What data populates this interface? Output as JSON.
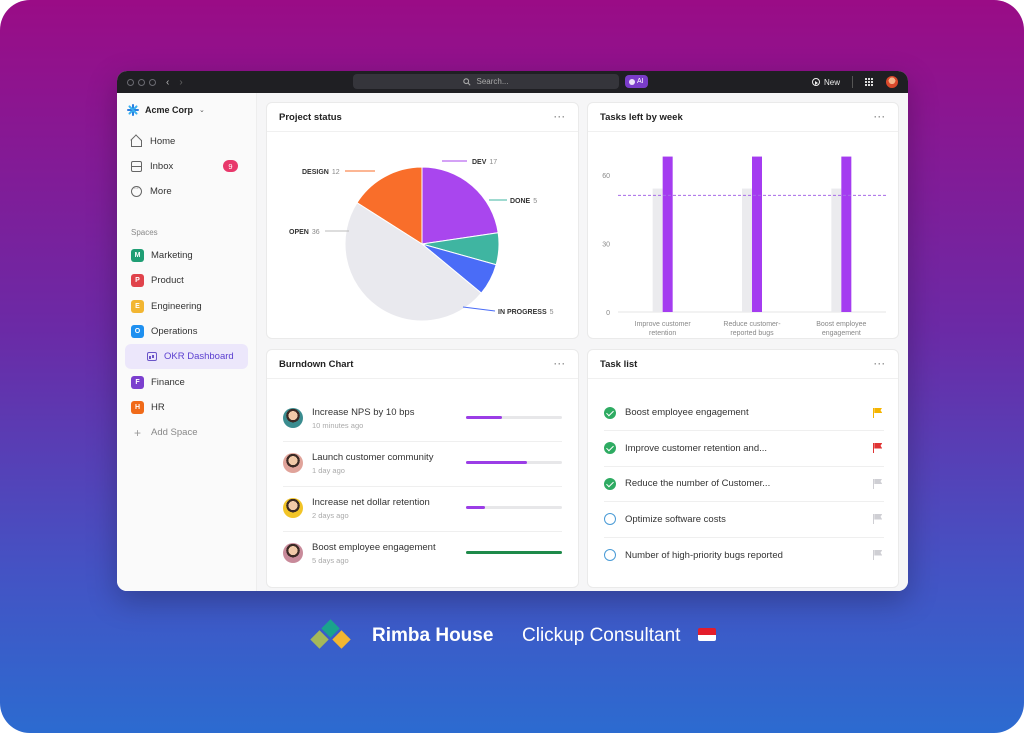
{
  "topbar": {
    "search_placeholder": "Search...",
    "ai_label": "AI",
    "new_label": "New"
  },
  "sidebar": {
    "workspace": "Acme Corp",
    "nav": [
      {
        "label": "Home",
        "icon": "home-icon"
      },
      {
        "label": "Inbox",
        "icon": "inbox-icon",
        "badge": "9"
      },
      {
        "label": "More",
        "icon": "more-icon"
      }
    ],
    "spaces_label": "Spaces",
    "spaces": [
      {
        "letter": "M",
        "label": "Marketing",
        "color": "#1f9e74"
      },
      {
        "letter": "P",
        "label": "Product",
        "color": "#e0434b"
      },
      {
        "letter": "E",
        "label": "Engineering",
        "color": "#f2b632"
      },
      {
        "letter": "O",
        "label": "Operations",
        "color": "#1e90f0"
      }
    ],
    "active_dashboard": "OKR Dashboard",
    "spaces_more": [
      {
        "letter": "F",
        "label": "Finance",
        "color": "#7b3fce"
      },
      {
        "letter": "H",
        "label": "HR",
        "color": "#f06a19"
      }
    ],
    "add_space": "Add Space"
  },
  "project_status": {
    "title": "Project status",
    "menu": "···",
    "chart_data": {
      "type": "pie",
      "slices": [
        {
          "label": "DESIGN",
          "value": 12,
          "color": "#f96e2a"
        },
        {
          "label": "DEV",
          "value": 17,
          "color": "#a946ee"
        },
        {
          "label": "DONE",
          "value": 5,
          "color": "#3fb5a1"
        },
        {
          "label": "IN PROGRESS",
          "value": 5,
          "color": "#4a6cf7"
        },
        {
          "label": "OPEN",
          "value": 36,
          "color": "#e9e9ee"
        }
      ]
    }
  },
  "tasks_by_week": {
    "title": "Tasks left by week",
    "menu": "···",
    "chart_data": {
      "type": "bar",
      "categories": [
        "Improve customer retention",
        "Reduce customer-reported bugs",
        "Boost employee engagement"
      ],
      "series": [
        {
          "values": [
            54,
            54,
            54
          ],
          "color": "#ebebee"
        },
        {
          "values": [
            68,
            68,
            68
          ],
          "color": "#a43cf0"
        }
      ],
      "reference_line": 51,
      "yticks": [
        0,
        30,
        60
      ],
      "ylim": [
        0,
        70
      ]
    }
  },
  "burndown": {
    "title": "Burndown Chart",
    "menu": "···",
    "rows": [
      {
        "title": "Increase NPS by 10 bps",
        "time": "10 minutes ago",
        "progress": 0.38,
        "color": "#9b3de6"
      },
      {
        "title": "Launch customer community",
        "time": "1 day ago",
        "progress": 0.64,
        "color": "#9b3de6"
      },
      {
        "title": "Increase net dollar retention",
        "time": "2 days ago",
        "progress": 0.2,
        "color": "#9b3de6"
      },
      {
        "title": "Boost employee engagement",
        "time": "5 days ago",
        "progress": 1.0,
        "color": "#1e8a4a"
      }
    ]
  },
  "task_list": {
    "title": "Task list",
    "menu": "···",
    "items": [
      {
        "text": "Boost employee engagement",
        "done": true,
        "flag_color": "#f5b400"
      },
      {
        "text": "Improve customer retention and...",
        "done": true,
        "flag_color": "#e03434"
      },
      {
        "text": "Reduce the number of Customer...",
        "done": true,
        "flag_color": "#cfcfd4"
      },
      {
        "text": "Optimize software costs",
        "done": false,
        "flag_color": "#cfcfd4"
      },
      {
        "text": "Number of high-priority bugs reported",
        "done": false,
        "flag_color": "#cfcfd4"
      }
    ]
  },
  "footer": {
    "brand": "Rimba House",
    "tagline": "Clickup Consultant"
  }
}
